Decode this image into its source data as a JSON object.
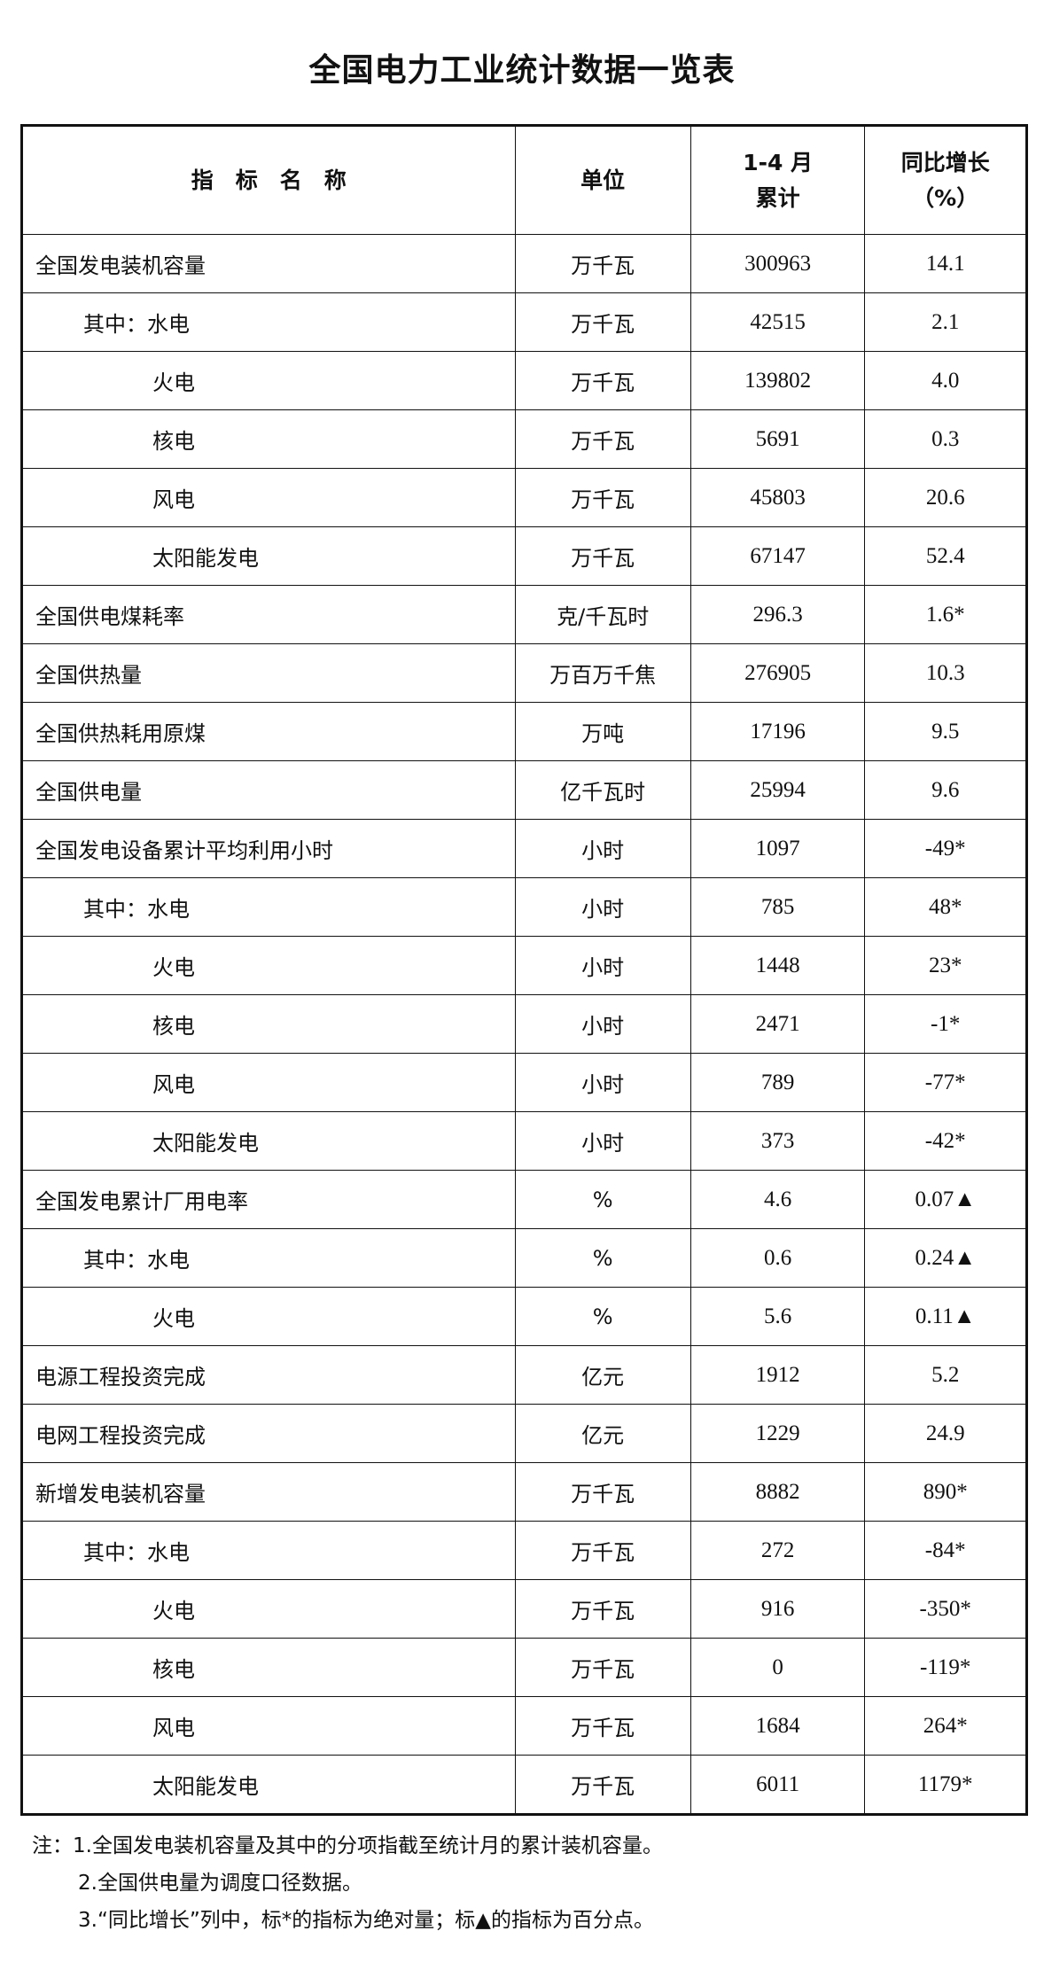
{
  "title": "全国电力工业统计数据一览表",
  "headers": {
    "name": "指　标　名　称",
    "unit": "单位",
    "cumulative_line1": "1-4 月",
    "cumulative_line2": "累计",
    "growth_line1": "同比增长",
    "growth_line2": "（%）"
  },
  "rows": [
    {
      "name": "全国发电装机容量",
      "level": 0,
      "unit": "万千瓦",
      "value": "300963",
      "growth": "14.1"
    },
    {
      "name": "其中：水电",
      "level": 1,
      "unit": "万千瓦",
      "value": "42515",
      "growth": "2.1"
    },
    {
      "name": "火电",
      "level": 2,
      "unit": "万千瓦",
      "value": "139802",
      "growth": "4.0"
    },
    {
      "name": "核电",
      "level": 2,
      "unit": "万千瓦",
      "value": "5691",
      "growth": "0.3"
    },
    {
      "name": "风电",
      "level": 2,
      "unit": "万千瓦",
      "value": "45803",
      "growth": "20.6"
    },
    {
      "name": "太阳能发电",
      "level": 2,
      "unit": "万千瓦",
      "value": "67147",
      "growth": "52.4"
    },
    {
      "name": "全国供电煤耗率",
      "level": 0,
      "unit": "克/千瓦时",
      "value": "296.3",
      "growth": "1.6*"
    },
    {
      "name": "全国供热量",
      "level": 0,
      "unit": "万百万千焦",
      "value": "276905",
      "growth": "10.3"
    },
    {
      "name": "全国供热耗用原煤",
      "level": 0,
      "unit": "万吨",
      "value": "17196",
      "growth": "9.5"
    },
    {
      "name": "全国供电量",
      "level": 0,
      "unit": "亿千瓦时",
      "value": "25994",
      "growth": "9.6"
    },
    {
      "name": "全国发电设备累计平均利用小时",
      "level": 0,
      "unit": "小时",
      "value": "1097",
      "growth": "-49*"
    },
    {
      "name": "其中：水电",
      "level": 1,
      "unit": "小时",
      "value": "785",
      "growth": "48*"
    },
    {
      "name": "火电",
      "level": 2,
      "unit": "小时",
      "value": "1448",
      "growth": "23*"
    },
    {
      "name": "核电",
      "level": 2,
      "unit": "小时",
      "value": "2471",
      "growth": "-1*"
    },
    {
      "name": "风电",
      "level": 2,
      "unit": "小时",
      "value": "789",
      "growth": "-77*"
    },
    {
      "name": "太阳能发电",
      "level": 2,
      "unit": "小时",
      "value": "373",
      "growth": "-42*"
    },
    {
      "name": "全国发电累计厂用电率",
      "level": 0,
      "unit": "%",
      "value": "4.6",
      "growth": "0.07▲"
    },
    {
      "name": "其中：水电",
      "level": 1,
      "unit": "%",
      "value": "0.6",
      "growth": "0.24▲"
    },
    {
      "name": "火电",
      "level": 2,
      "unit": "%",
      "value": "5.6",
      "growth": "0.11▲"
    },
    {
      "name": "电源工程投资完成",
      "level": 0,
      "unit": "亿元",
      "value": "1912",
      "growth": "5.2"
    },
    {
      "name": "电网工程投资完成",
      "level": 0,
      "unit": "亿元",
      "value": "1229",
      "growth": "24.9"
    },
    {
      "name": "新增发电装机容量",
      "level": 0,
      "unit": "万千瓦",
      "value": "8882",
      "growth": "890*"
    },
    {
      "name": "其中：水电",
      "level": 1,
      "unit": "万千瓦",
      "value": "272",
      "growth": "-84*"
    },
    {
      "name": "火电",
      "level": 2,
      "unit": "万千瓦",
      "value": "916",
      "growth": "-350*"
    },
    {
      "name": "核电",
      "level": 2,
      "unit": "万千瓦",
      "value": "0",
      "growth": "-119*"
    },
    {
      "name": "风电",
      "level": 2,
      "unit": "万千瓦",
      "value": "1684",
      "growth": "264*"
    },
    {
      "name": "太阳能发电",
      "level": 2,
      "unit": "万千瓦",
      "value": "6011",
      "growth": "1179*"
    }
  ],
  "notes": [
    "注：1.全国发电装机容量及其中的分项指截至统计月的累计装机容量。",
    "2.全国供电量为调度口径数据。",
    "3.“同比增长”列中，标*的指标为绝对量；标▲的指标为百分点。"
  ]
}
